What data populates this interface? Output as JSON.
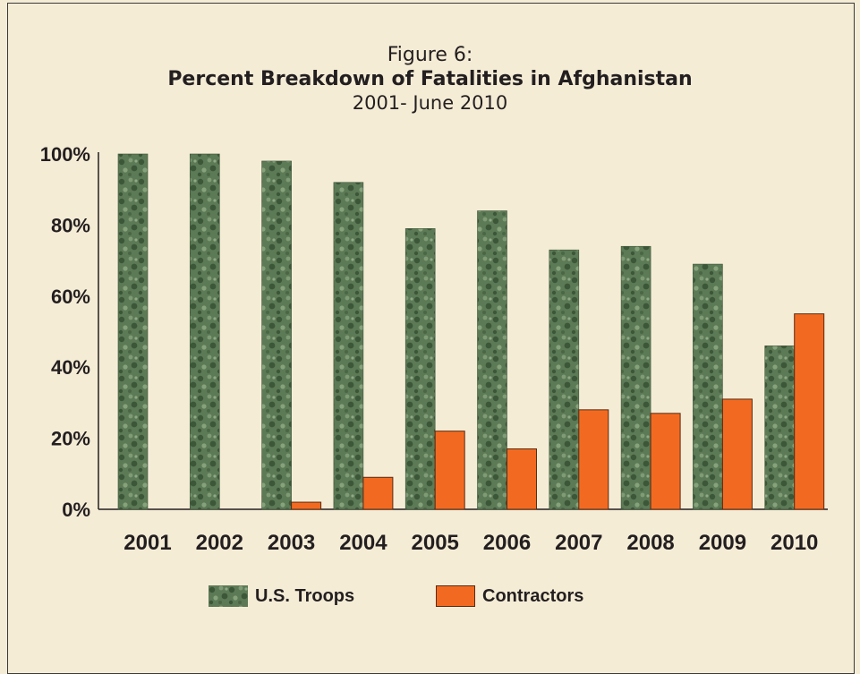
{
  "colors": {
    "background": "#f5ecd6",
    "troops_base": "#5d7a56",
    "troops_spot": "#3c5638",
    "contractors": "#f26a21"
  },
  "chart_data": {
    "type": "bar",
    "title_line1": "Figure 6:",
    "title": "Percent Breakdown of Fatalities in Afghanistan",
    "subtitle": "2001- June 2010",
    "categories": [
      "2001",
      "2002",
      "2003",
      "2004",
      "2005",
      "2006",
      "2007",
      "2008",
      "2009",
      "2010"
    ],
    "series": [
      {
        "name": "U.S. Troops",
        "values": [
          100,
          100,
          98,
          92,
          79,
          84,
          73,
          74,
          69,
          46
        ]
      },
      {
        "name": "Contractors",
        "values": [
          0,
          0,
          2,
          9,
          22,
          17,
          28,
          27,
          31,
          55
        ]
      }
    ],
    "yticks": [
      "0%",
      "20%",
      "40%",
      "60%",
      "80%",
      "100%"
    ],
    "ylim": [
      0,
      100
    ],
    "legend_position": "bottom",
    "grid": false
  }
}
